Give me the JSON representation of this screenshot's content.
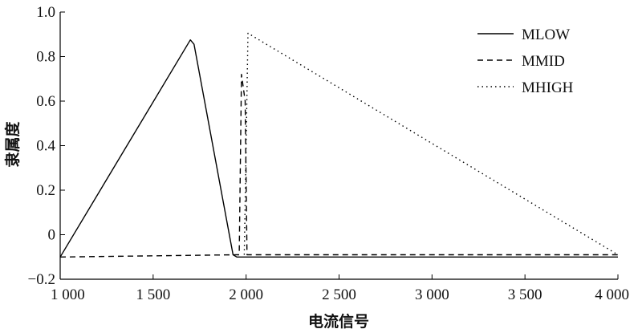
{
  "chart_data": {
    "type": "line",
    "title": "",
    "xlabel": "电流信号",
    "ylabel": "隶属度",
    "xlim": [
      1000,
      4000
    ],
    "ylim": [
      -0.2,
      1.0
    ],
    "x_ticks": [
      1000,
      1500,
      2000,
      2500,
      3000,
      3500,
      4000
    ],
    "x_tick_labels": [
      "1 000",
      "1 500",
      "2 000",
      "2 500",
      "3 000",
      "3 500",
      "4 000"
    ],
    "y_ticks": [
      -0.2,
      0,
      0.2,
      0.4,
      0.6,
      0.8,
      1.0
    ],
    "y_tick_labels": [
      "−0.2",
      "0",
      "0.2",
      "0.4",
      "0.6",
      "0.8",
      "1.0"
    ],
    "grid": false,
    "legend_position": "top-right",
    "series": [
      {
        "name": "MLOW",
        "style": "solid",
        "x": [
          1000,
          1700,
          1720,
          1930,
          1950,
          4000
        ],
        "y": [
          -0.1,
          0.875,
          0.855,
          -0.09,
          -0.1,
          -0.1
        ]
      },
      {
        "name": "MMID",
        "style": "dashed",
        "x": [
          1000,
          1950,
          1963,
          1975,
          1995,
          2005,
          4000
        ],
        "y": [
          -0.1,
          -0.09,
          -0.09,
          0.72,
          0.6,
          -0.09,
          -0.09
        ]
      },
      {
        "name": "MHIGH",
        "style": "dotted",
        "x": [
          1990,
          2010,
          4000
        ],
        "y": [
          -0.09,
          0.905,
          -0.09
        ]
      }
    ]
  }
}
